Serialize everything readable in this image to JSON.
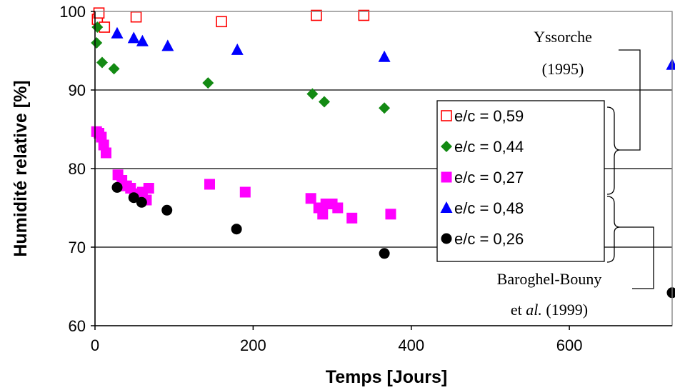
{
  "chart_data": {
    "type": "scatter",
    "title": "",
    "xlabel": "Temps [Jours]",
    "ylabel": "Humidité relative [%]",
    "xlim": [
      0,
      730
    ],
    "ylim": [
      60,
      100
    ],
    "xticks": [
      0,
      200,
      400,
      600
    ],
    "yticks": [
      60,
      70,
      80,
      90,
      100
    ],
    "grid": "horizontal",
    "legend_position": "right",
    "series": [
      {
        "name": "e/c = 0,59",
        "marker": "square-open",
        "color": "#ff0000",
        "x": [
          3,
          5,
          12,
          52,
          160,
          280,
          340
        ],
        "y": [
          99,
          99.8,
          98,
          99.3,
          98.7,
          99.5,
          99.5
        ]
      },
      {
        "name": "e/c = 0,44",
        "marker": "diamond",
        "color": "#138a13",
        "x": [
          2,
          3,
          9,
          24,
          143,
          275,
          290,
          366
        ],
        "y": [
          96,
          98,
          93.5,
          92.7,
          90.9,
          89.5,
          88.5,
          87.7
        ]
      },
      {
        "name": "e/c = 0,27",
        "marker": "square",
        "color": "#ff00ff",
        "x": [
          2,
          5,
          8,
          11,
          14,
          29,
          34,
          40,
          45,
          50,
          55,
          60,
          65,
          68,
          145,
          190,
          273,
          283,
          288,
          292,
          300,
          307,
          325,
          374
        ],
        "y": [
          84.7,
          84.5,
          84,
          83,
          82,
          79.2,
          78.5,
          77.8,
          77.5,
          76.8,
          76.5,
          77,
          76,
          77.5,
          78,
          77,
          76.2,
          75,
          74.2,
          75.5,
          75.5,
          75,
          73.7,
          74.2
        ]
      },
      {
        "name": "e/c = 0,48",
        "marker": "triangle",
        "color": "#0000ff",
        "x": [
          28,
          49,
          60,
          92,
          180,
          366,
          730
        ],
        "y": [
          97.2,
          96.6,
          96.2,
          95.6,
          95.1,
          94.2,
          93.2
        ]
      },
      {
        "name": "e/c = 0,26",
        "marker": "circle",
        "color": "#000000",
        "x": [
          28,
          49,
          59,
          91,
          179,
          366,
          730
        ],
        "y": [
          77.6,
          76.3,
          75.7,
          74.7,
          72.3,
          69.2,
          64.2
        ]
      }
    ],
    "annotations": [
      {
        "lines": [
          "Yssorche",
          "(1995)"
        ]
      },
      {
        "lines": [
          "Baroghel-Bouny",
          "et al. (1999)"
        ],
        "italic_word": "al."
      }
    ]
  }
}
